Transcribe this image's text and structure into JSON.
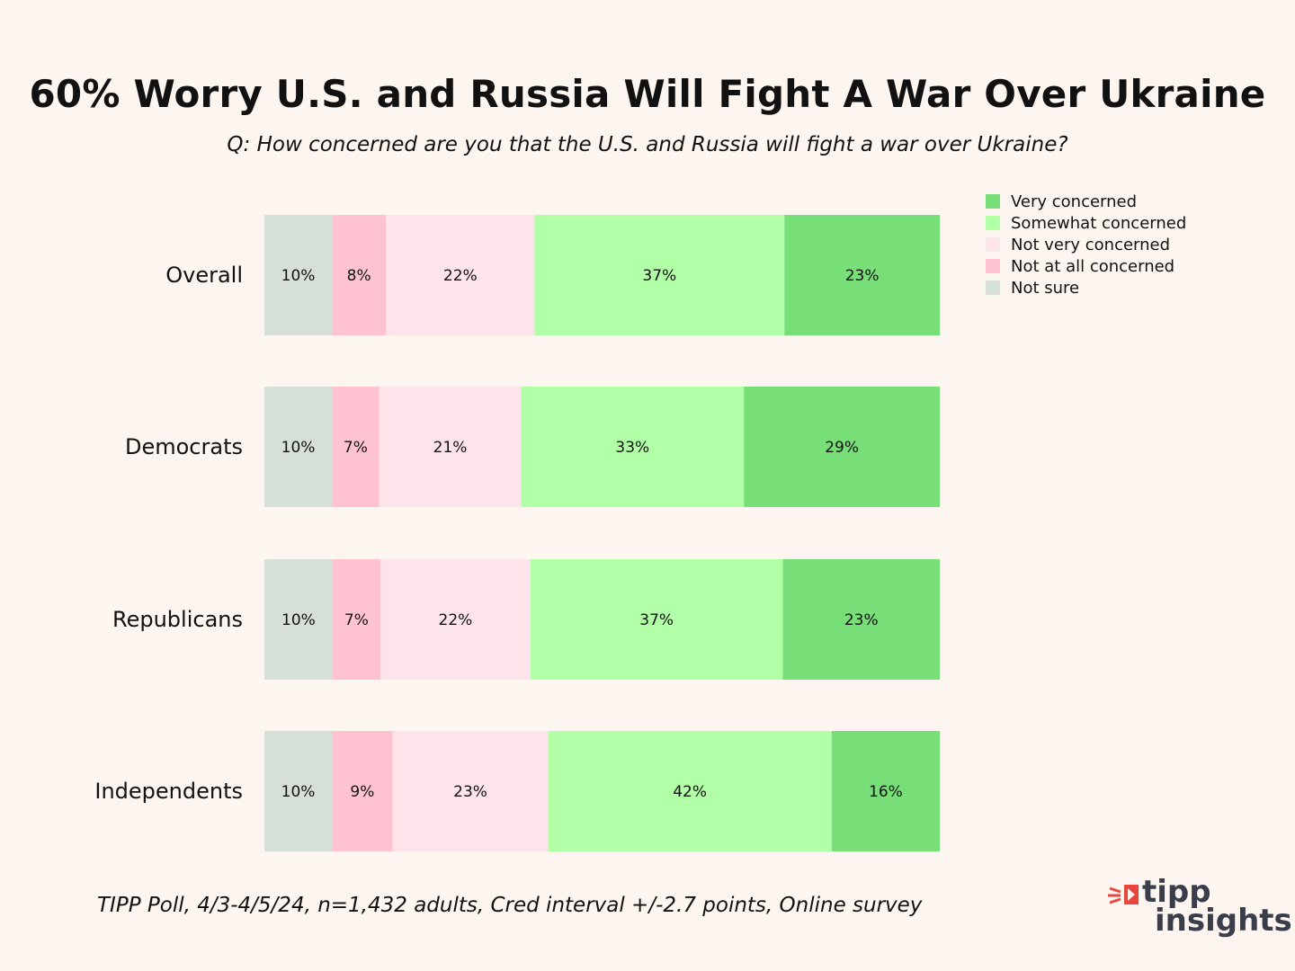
{
  "chart_data": {
    "type": "bar",
    "orientation": "horizontal",
    "stacked": true,
    "normalized": true,
    "title": "60% Worry U.S. and Russia Will Fight A War Over Ukraine",
    "subtitle": "Q: How concerned are you that the U.S. and Russia will fight a war over Ukraine?",
    "categories": [
      "Overall",
      "Democrats",
      "Republicans",
      "Independents"
    ],
    "series": [
      {
        "name": "Not sure",
        "color": "#d6e0d8",
        "values": [
          10,
          10,
          10,
          10
        ],
        "labels": [
          "10%",
          "10%",
          "10%",
          "10%"
        ]
      },
      {
        "name": "Not at all concerned",
        "color": "#ffc2d0",
        "values": [
          8,
          7,
          7,
          9
        ],
        "labels": [
          "8%",
          "7%",
          "7%",
          "9%"
        ]
      },
      {
        "name": "Not very concerned",
        "color": "#fde4ea",
        "values": [
          22,
          21,
          22,
          23
        ],
        "labels": [
          "22%",
          "21%",
          "22%",
          "23%"
        ]
      },
      {
        "name": "Somewhat concerned",
        "color": "#b1ffa6",
        "values": [
          37,
          33,
          37,
          42
        ],
        "labels": [
          "37%",
          "33%",
          "37%",
          "42%"
        ]
      },
      {
        "name": "Very concerned",
        "color": "#78de78",
        "values": [
          23,
          29,
          23,
          16
        ],
        "labels": [
          "23%",
          "29%",
          "23%",
          "16%"
        ]
      }
    ],
    "legend": {
      "position": "top-right",
      "order": [
        "Very concerned",
        "Somewhat concerned",
        "Not very concerned",
        "Not at all concerned",
        "Not sure"
      ]
    },
    "grid": false
  },
  "footer": "TIPP Poll, 4/3-4/5/24, n=1,432 adults, Cred interval +/-2.7 points, Online survey",
  "logo": {
    "line1": "tipp",
    "line2": "insights",
    "accent_color": "#e8463c"
  }
}
